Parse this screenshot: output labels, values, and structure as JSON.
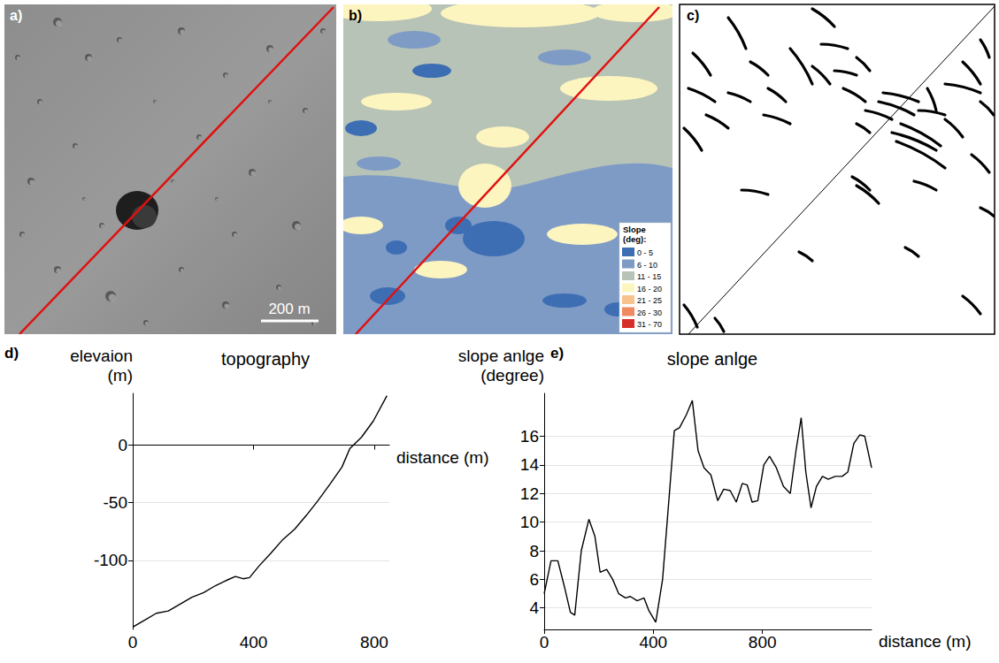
{
  "image_panels": {
    "a": {
      "label": "a)",
      "scale_bar": "200 m"
    },
    "b": {
      "label": "b)",
      "legend_title": "Slope (deg):",
      "slope_classes": [
        {
          "label": "0 - 5",
          "color": "#3d6eb4"
        },
        {
          "label": "6 - 10",
          "color": "#7e9bc6"
        },
        {
          "label": "11 - 15",
          "color": "#b7c3b6"
        },
        {
          "label": "16 - 20",
          "color": "#fdf5c0"
        },
        {
          "label": "21 - 25",
          "color": "#f6c28e"
        },
        {
          "label": "26 - 30",
          "color": "#ef8a61"
        },
        {
          "label": "31 - 70",
          "color": "#d62f27"
        }
      ]
    },
    "c": {
      "label": "c)"
    }
  },
  "chart_data": [
    {
      "type": "line",
      "panel_label": "d)",
      "title": "topography",
      "x_label": "distance (m)",
      "y_label": "elevaion (m)",
      "x": [
        0,
        39,
        78,
        118,
        157,
        196,
        235,
        274,
        314,
        340,
        366,
        387,
        418,
        457,
        497,
        536,
        575,
        614,
        653,
        693,
        719,
        758,
        797,
        842
      ],
      "values": [
        -158,
        -152,
        -146,
        -144,
        -138,
        -132,
        -128,
        -122,
        -117,
        -114,
        -116,
        -115,
        -105,
        -94,
        -82,
        -73,
        -61,
        -48,
        -34,
        -19,
        -3,
        7,
        21,
        43
      ],
      "color": "#000000",
      "xlim": [
        0,
        850
      ],
      "xticks": [
        0,
        400,
        800
      ],
      "ylim": [
        -160,
        45
      ],
      "yticks": [
        -100,
        -50,
        0
      ],
      "grid": true
    },
    {
      "type": "line",
      "panel_label": "e)",
      "title": "slope anlge",
      "x_label": "distance (m)",
      "y_label": "slope anlge (degree)",
      "x": [
        0,
        25,
        50,
        74,
        96,
        112,
        136,
        164,
        186,
        205,
        229,
        251,
        273,
        298,
        316,
        341,
        366,
        384,
        409,
        434,
        459,
        477,
        496,
        521,
        543,
        564,
        586,
        611,
        636,
        658,
        682,
        704,
        726,
        744,
        762,
        783,
        805,
        826,
        851,
        877,
        902,
        923,
        942,
        959,
        978,
        998,
        1020,
        1041,
        1067,
        1092,
        1113,
        1135,
        1157,
        1175,
        1200
      ],
      "values": [
        5.0,
        7.3,
        7.3,
        5.5,
        3.7,
        3.5,
        8.0,
        10.2,
        9.0,
        6.5,
        6.7,
        6.0,
        5.0,
        4.7,
        4.8,
        4.5,
        4.7,
        3.8,
        3.0,
        6.0,
        12.0,
        16.4,
        16.6,
        17.5,
        18.5,
        15.0,
        13.8,
        13.3,
        11.5,
        12.3,
        12.2,
        11.4,
        12.7,
        12.6,
        11.4,
        11.5,
        14.0,
        14.6,
        13.8,
        12.5,
        12.0,
        15.0,
        17.3,
        13.5,
        11.0,
        12.5,
        13.2,
        13.0,
        13.2,
        13.2,
        13.5,
        15.5,
        16.1,
        16.0,
        13.8
      ],
      "color": "#000000",
      "xlim": [
        0,
        1200
      ],
      "xticks": [
        0,
        400,
        800
      ],
      "ylim": [
        2.5,
        19
      ],
      "yticks": [
        4,
        6,
        8,
        10,
        12,
        14,
        16
      ],
      "grid": true
    }
  ]
}
